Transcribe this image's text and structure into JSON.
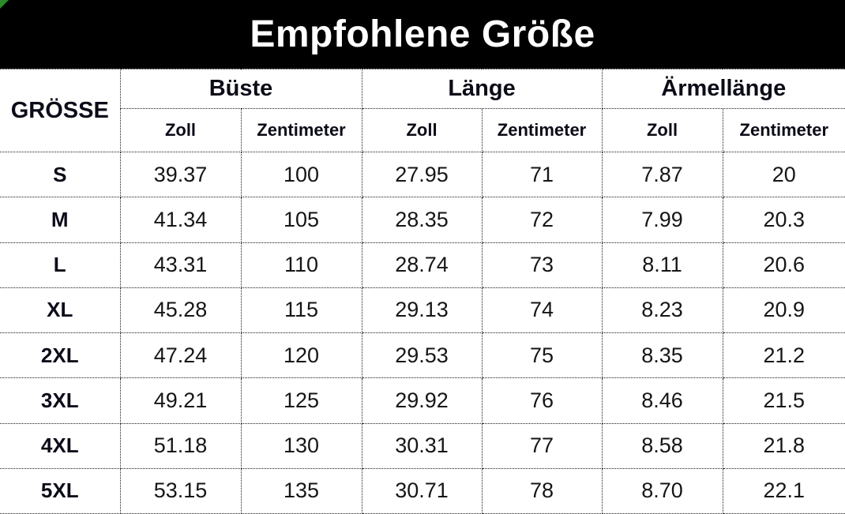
{
  "title": "Empfohlene Größe",
  "table": {
    "size_header": "GRÖSSE",
    "groups": [
      {
        "label": "Büste"
      },
      {
        "label": "Länge"
      },
      {
        "label": "Ärmellänge"
      }
    ],
    "subheaders": [
      "Zoll",
      "Zentimeter"
    ],
    "rows": [
      {
        "size": "S",
        "values": [
          "39.37",
          "100",
          "27.95",
          "71",
          "7.87",
          "20"
        ]
      },
      {
        "size": "M",
        "values": [
          "41.34",
          "105",
          "28.35",
          "72",
          "7.99",
          "20.3"
        ]
      },
      {
        "size": "L",
        "values": [
          "43.31",
          "110",
          "28.74",
          "73",
          "8.11",
          "20.6"
        ]
      },
      {
        "size": "XL",
        "values": [
          "45.28",
          "115",
          "29.13",
          "74",
          "8.23",
          "20.9"
        ]
      },
      {
        "size": "2XL",
        "values": [
          "47.24",
          "120",
          "29.53",
          "75",
          "8.35",
          "21.2"
        ]
      },
      {
        "size": "3XL",
        "values": [
          "49.21",
          "125",
          "29.92",
          "76",
          "8.46",
          "21.5"
        ]
      },
      {
        "size": "4XL",
        "values": [
          "51.18",
          "130",
          "30.31",
          "77",
          "8.58",
          "21.8"
        ]
      },
      {
        "size": "5XL",
        "values": [
          "53.15",
          "135",
          "30.71",
          "78",
          "8.70",
          "22.1"
        ]
      }
    ]
  },
  "colors": {
    "banner_bg": "#000000",
    "banner_text": "#ffffff",
    "header_text": "#0c0c18",
    "cell_text": "#161616",
    "border": "#1a1a1a",
    "corner_accent": "#2d8a2d"
  },
  "chart_data": {
    "type": "table",
    "title": "Empfohlene Größe",
    "columns": [
      "GRÖSSE",
      "Büste Zoll",
      "Büste Zentimeter",
      "Länge Zoll",
      "Länge Zentimeter",
      "Ärmellänge Zoll",
      "Ärmellänge Zentimeter"
    ],
    "rows": [
      [
        "S",
        39.37,
        100,
        27.95,
        71,
        7.87,
        20
      ],
      [
        "M",
        41.34,
        105,
        28.35,
        72,
        7.99,
        20.3
      ],
      [
        "L",
        43.31,
        110,
        28.74,
        73,
        8.11,
        20.6
      ],
      [
        "XL",
        45.28,
        115,
        29.13,
        74,
        8.23,
        20.9
      ],
      [
        "2XL",
        47.24,
        120,
        29.53,
        75,
        8.35,
        21.2
      ],
      [
        "3XL",
        49.21,
        125,
        29.92,
        76,
        8.46,
        21.5
      ],
      [
        "4XL",
        51.18,
        130,
        30.31,
        77,
        8.58,
        21.8
      ],
      [
        "5XL",
        53.15,
        135,
        30.71,
        78,
        8.7,
        22.1
      ]
    ]
  }
}
